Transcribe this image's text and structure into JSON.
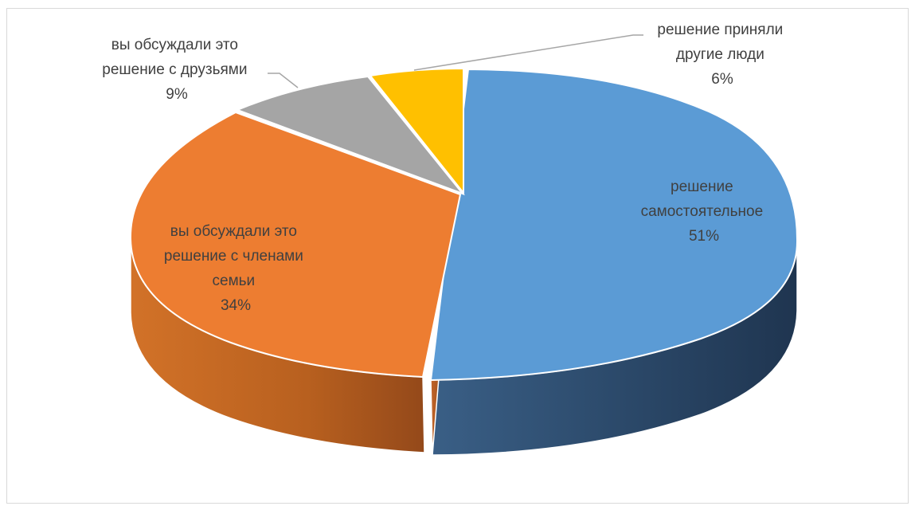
{
  "chart_data": {
    "type": "pie",
    "style": "3d",
    "title": "",
    "slices": [
      {
        "name": "решение самостоятельное",
        "label_lines": [
          "решение",
          "самостоятельное"
        ],
        "percent_label": "51%",
        "value": 51,
        "color": "#5b9bd5"
      },
      {
        "name": "вы обсуждали это решение с членами семьи",
        "label_lines": [
          "вы обсуждали это",
          "решение с членами",
          "семьи"
        ],
        "percent_label": "34%",
        "value": 34,
        "color": "#ed7d31"
      },
      {
        "name": "вы обсуждали это решение с друзьями",
        "label_lines": [
          "вы обсуждали это",
          "решение с друзьями"
        ],
        "percent_label": "9%",
        "value": 9,
        "color": "#a5a5a5"
      },
      {
        "name": "решение приняли другие люди",
        "label_lines": [
          "решение приняли",
          "другие люди"
        ],
        "percent_label": "6%",
        "value": 6,
        "color": "#ffc000"
      }
    ],
    "legend": "none",
    "data_labels": "category name and percentage"
  }
}
